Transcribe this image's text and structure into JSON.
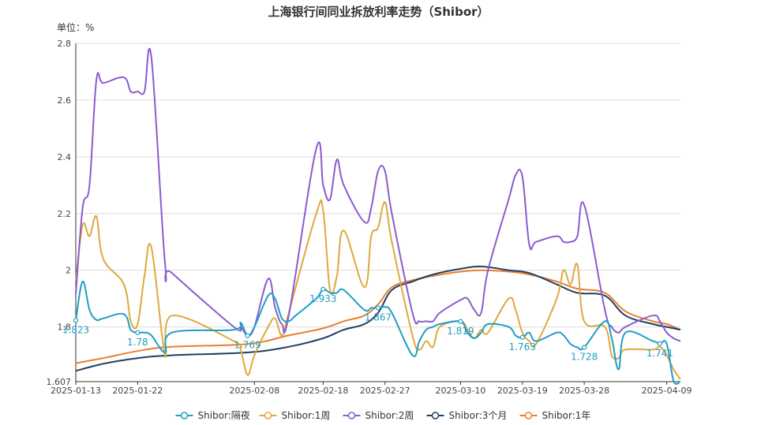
{
  "title": "上海银行间同业拆放利率走势（Shibor）",
  "unit": "单位：%",
  "chart_data": {
    "type": "line",
    "title": "上海银行间同业拆放利率走势（Shibor）",
    "ylabel": "单位：%",
    "xlabel": "",
    "ylim": [
      1.607,
      2.8
    ],
    "y_ticks": [
      "1.607",
      "1.8",
      "2",
      "2.2",
      "2.4",
      "2.6",
      "2.8"
    ],
    "x_range": [
      "2025-01-13",
      "2025-04-11"
    ],
    "x_ticks": [
      "2025-01-13",
      "2025-01-22",
      "2025-02-08",
      "2025-02-18",
      "2025-02-27",
      "2025-03-10",
      "2025-03-19",
      "2025-03-28",
      "2025-04-09"
    ],
    "grid": "horizontal",
    "legend": "bottom-center",
    "series": [
      {
        "name": "Shibor:隔夜",
        "color": "#1f9ec4",
        "values": [
          [
            "2025-01-13",
            1.823
          ],
          [
            "2025-01-14",
            1.96
          ],
          [
            "2025-01-15",
            1.86
          ],
          [
            "2025-01-16",
            1.825
          ],
          [
            "2025-01-17",
            1.83
          ],
          [
            "2025-01-20",
            1.845
          ],
          [
            "2025-01-21",
            1.79
          ],
          [
            "2025-01-22",
            1.78
          ],
          [
            "2025-01-23",
            1.78
          ],
          [
            "2025-01-24",
            1.77
          ],
          [
            "2025-01-26",
            1.71
          ],
          [
            "2025-01-27",
            1.78
          ],
          [
            "2025-02-05",
            1.79
          ],
          [
            "2025-02-06",
            1.815
          ],
          [
            "2025-02-07",
            1.769
          ],
          [
            "2025-02-08",
            1.8
          ],
          [
            "2025-02-10",
            1.91
          ],
          [
            "2025-02-11",
            1.9
          ],
          [
            "2025-02-12",
            1.83
          ],
          [
            "2025-02-13",
            1.82
          ],
          [
            "2025-02-14",
            1.84
          ],
          [
            "2025-02-17",
            1.9
          ],
          [
            "2025-02-18",
            1.933
          ],
          [
            "2025-02-19",
            1.92
          ],
          [
            "2025-02-20",
            1.92
          ],
          [
            "2025-02-21",
            1.93
          ],
          [
            "2025-02-24",
            1.86
          ],
          [
            "2025-02-25",
            1.867
          ],
          [
            "2025-02-26",
            1.867
          ],
          [
            "2025-02-27",
            1.87
          ],
          [
            "2025-02-28",
            1.85
          ],
          [
            "2025-03-03",
            1.7
          ],
          [
            "2025-03-04",
            1.75
          ],
          [
            "2025-03-05",
            1.79
          ],
          [
            "2025-03-06",
            1.8
          ],
          [
            "2025-03-07",
            1.81
          ],
          [
            "2025-03-10",
            1.819
          ],
          [
            "2025-03-11",
            1.78
          ],
          [
            "2025-03-12",
            1.76
          ],
          [
            "2025-03-13",
            1.78
          ],
          [
            "2025-03-14",
            1.81
          ],
          [
            "2025-03-17",
            1.8
          ],
          [
            "2025-03-18",
            1.77
          ],
          [
            "2025-03-19",
            1.763
          ],
          [
            "2025-03-20",
            1.78
          ],
          [
            "2025-03-21",
            1.75
          ],
          [
            "2025-03-24",
            1.78
          ],
          [
            "2025-03-25",
            1.77
          ],
          [
            "2025-03-26",
            1.74
          ],
          [
            "2025-03-27",
            1.728
          ],
          [
            "2025-03-28",
            1.728
          ],
          [
            "2025-03-31",
            1.82
          ],
          [
            "2025-04-01",
            1.76
          ],
          [
            "2025-04-02",
            1.65
          ],
          [
            "2025-04-03",
            1.78
          ],
          [
            "2025-04-07",
            1.75
          ],
          [
            "2025-04-08",
            1.741
          ],
          [
            "2025-04-09",
            1.741
          ],
          [
            "2025-04-10",
            1.61
          ],
          [
            "2025-04-11",
            1.607
          ]
        ]
      },
      {
        "name": "Shibor:1周",
        "color": "#e0a83e",
        "values": [
          [
            "2025-01-13",
            1.96
          ],
          [
            "2025-01-14",
            2.16
          ],
          [
            "2025-01-15",
            2.12
          ],
          [
            "2025-01-16",
            2.19
          ],
          [
            "2025-01-17",
            2.04
          ],
          [
            "2025-01-20",
            1.95
          ],
          [
            "2025-01-21",
            1.82
          ],
          [
            "2025-01-22",
            1.81
          ],
          [
            "2025-01-23",
            1.98
          ],
          [
            "2025-01-24",
            2.08
          ],
          [
            "2025-01-26",
            1.7
          ],
          [
            "2025-01-27",
            1.84
          ],
          [
            "2025-02-05",
            1.75
          ],
          [
            "2025-02-06",
            1.72
          ],
          [
            "2025-02-07",
            1.63
          ],
          [
            "2025-02-08",
            1.7
          ],
          [
            "2025-02-10",
            1.8
          ],
          [
            "2025-02-11",
            1.83
          ],
          [
            "2025-02-12",
            1.77
          ],
          [
            "2025-02-13",
            1.85
          ],
          [
            "2025-02-17",
            2.2
          ],
          [
            "2025-02-18",
            2.21
          ],
          [
            "2025-02-19",
            1.93
          ],
          [
            "2025-02-20",
            1.98
          ],
          [
            "2025-02-21",
            2.14
          ],
          [
            "2025-02-24",
            1.94
          ],
          [
            "2025-02-25",
            2.12
          ],
          [
            "2025-02-26",
            2.15
          ],
          [
            "2025-02-27",
            2.24
          ],
          [
            "2025-02-28",
            2.1
          ],
          [
            "2025-03-03",
            1.77
          ],
          [
            "2025-03-04",
            1.72
          ],
          [
            "2025-03-05",
            1.75
          ],
          [
            "2025-03-06",
            1.73
          ],
          [
            "2025-03-07",
            1.8
          ],
          [
            "2025-03-10",
            1.82
          ],
          [
            "2025-03-11",
            1.79
          ],
          [
            "2025-03-12",
            1.76
          ],
          [
            "2025-03-13",
            1.79
          ],
          [
            "2025-03-14",
            1.78
          ],
          [
            "2025-03-17",
            1.9
          ],
          [
            "2025-03-18",
            1.86
          ],
          [
            "2025-03-19",
            1.78
          ],
          [
            "2025-03-20",
            1.75
          ],
          [
            "2025-03-21",
            1.74
          ],
          [
            "2025-03-24",
            1.9
          ],
          [
            "2025-03-25",
            2.0
          ],
          [
            "2025-03-26",
            1.95
          ],
          [
            "2025-03-27",
            2.02
          ],
          [
            "2025-03-28",
            1.82
          ],
          [
            "2025-03-31",
            1.8
          ],
          [
            "2025-04-01",
            1.7
          ],
          [
            "2025-04-02",
            1.69
          ],
          [
            "2025-04-03",
            1.72
          ],
          [
            "2025-04-07",
            1.72
          ],
          [
            "2025-04-08",
            1.73
          ],
          [
            "2025-04-09",
            1.7
          ],
          [
            "2025-04-10",
            1.65
          ],
          [
            "2025-04-11",
            1.615
          ]
        ]
      },
      {
        "name": "Shibor:2周",
        "color": "#8a5ccf",
        "values": [
          [
            "2025-01-13",
            1.915
          ],
          [
            "2025-01-14",
            2.22
          ],
          [
            "2025-01-15",
            2.3
          ],
          [
            "2025-01-16",
            2.67
          ],
          [
            "2025-01-17",
            2.66
          ],
          [
            "2025-01-20",
            2.68
          ],
          [
            "2025-01-21",
            2.63
          ],
          [
            "2025-01-22",
            2.63
          ],
          [
            "2025-01-23",
            2.63
          ],
          [
            "2025-01-24",
            2.75
          ],
          [
            "2025-01-26",
            2.02
          ],
          [
            "2025-01-27",
            1.99
          ],
          [
            "2025-02-05",
            1.8
          ],
          [
            "2025-02-06",
            1.8
          ],
          [
            "2025-02-07",
            1.77
          ],
          [
            "2025-02-08",
            1.8
          ],
          [
            "2025-02-10",
            1.97
          ],
          [
            "2025-02-11",
            1.87
          ],
          [
            "2025-02-12",
            1.81
          ],
          [
            "2025-02-13",
            1.84
          ],
          [
            "2025-02-17",
            2.43
          ],
          [
            "2025-02-18",
            2.3
          ],
          [
            "2025-02-19",
            2.25
          ],
          [
            "2025-02-20",
            2.39
          ],
          [
            "2025-02-21",
            2.3
          ],
          [
            "2025-02-24",
            2.17
          ],
          [
            "2025-02-25",
            2.22
          ],
          [
            "2025-02-26",
            2.35
          ],
          [
            "2025-02-27",
            2.35
          ],
          [
            "2025-02-28",
            2.2
          ],
          [
            "2025-03-03",
            1.85
          ],
          [
            "2025-03-04",
            1.82
          ],
          [
            "2025-03-05",
            1.82
          ],
          [
            "2025-03-06",
            1.82
          ],
          [
            "2025-03-07",
            1.85
          ],
          [
            "2025-03-10",
            1.895
          ],
          [
            "2025-03-11",
            1.9
          ],
          [
            "2025-03-12",
            1.86
          ],
          [
            "2025-03-13",
            1.85
          ],
          [
            "2025-03-14",
            2.0
          ],
          [
            "2025-03-17",
            2.25
          ],
          [
            "2025-03-18",
            2.335
          ],
          [
            "2025-03-19",
            2.33
          ],
          [
            "2025-03-20",
            2.09
          ],
          [
            "2025-03-21",
            2.1
          ],
          [
            "2025-03-24",
            2.12
          ],
          [
            "2025-03-25",
            2.1
          ],
          [
            "2025-03-26",
            2.1
          ],
          [
            "2025-03-27",
            2.12
          ],
          [
            "2025-03-28",
            2.23
          ],
          [
            "2025-03-31",
            1.86
          ],
          [
            "2025-04-01",
            1.8
          ],
          [
            "2025-04-02",
            1.78
          ],
          [
            "2025-04-03",
            1.8
          ],
          [
            "2025-04-07",
            1.84
          ],
          [
            "2025-04-08",
            1.82
          ],
          [
            "2025-04-09",
            1.78
          ],
          [
            "2025-04-10",
            1.76
          ],
          [
            "2025-04-11",
            1.75
          ]
        ]
      },
      {
        "name": "Shibor:3个月",
        "color": "#1e3f66",
        "values": [
          [
            "2025-01-13",
            1.645
          ],
          [
            "2025-01-17",
            1.67
          ],
          [
            "2025-01-22",
            1.69
          ],
          [
            "2025-01-27",
            1.7
          ],
          [
            "2025-02-07",
            1.71
          ],
          [
            "2025-02-13",
            1.73
          ],
          [
            "2025-02-18",
            1.76
          ],
          [
            "2025-02-21",
            1.79
          ],
          [
            "2025-02-24",
            1.81
          ],
          [
            "2025-02-26",
            1.85
          ],
          [
            "2025-02-28",
            1.93
          ],
          [
            "2025-03-03",
            1.96
          ],
          [
            "2025-03-06",
            1.985
          ],
          [
            "2025-03-10",
            2.005
          ],
          [
            "2025-03-13",
            2.013
          ],
          [
            "2025-03-17",
            2.0
          ],
          [
            "2025-03-20",
            1.99
          ],
          [
            "2025-03-24",
            1.95
          ],
          [
            "2025-03-27",
            1.92
          ],
          [
            "2025-03-31",
            1.91
          ],
          [
            "2025-04-03",
            1.84
          ],
          [
            "2025-04-07",
            1.81
          ],
          [
            "2025-04-09",
            1.8
          ],
          [
            "2025-04-11",
            1.79
          ]
        ]
      },
      {
        "name": "Shibor:1年",
        "color": "#ea7f2e",
        "values": [
          [
            "2025-01-13",
            1.672
          ],
          [
            "2025-01-17",
            1.69
          ],
          [
            "2025-01-22",
            1.715
          ],
          [
            "2025-01-27",
            1.73
          ],
          [
            "2025-02-07",
            1.74
          ],
          [
            "2025-02-13",
            1.77
          ],
          [
            "2025-02-18",
            1.795
          ],
          [
            "2025-02-21",
            1.82
          ],
          [
            "2025-02-24",
            1.84
          ],
          [
            "2025-02-26",
            1.88
          ],
          [
            "2025-02-28",
            1.94
          ],
          [
            "2025-03-03",
            1.965
          ],
          [
            "2025-03-06",
            1.98
          ],
          [
            "2025-03-10",
            1.995
          ],
          [
            "2025-03-13",
            2.0
          ],
          [
            "2025-03-17",
            1.995
          ],
          [
            "2025-03-20",
            1.985
          ],
          [
            "2025-03-24",
            1.96
          ],
          [
            "2025-03-27",
            1.935
          ],
          [
            "2025-03-31",
            1.92
          ],
          [
            "2025-04-03",
            1.855
          ],
          [
            "2025-04-07",
            1.82
          ],
          [
            "2025-04-09",
            1.81
          ],
          [
            "2025-04-11",
            1.79
          ]
        ]
      }
    ],
    "data_labels": [
      {
        "series": 0,
        "x": "2025-01-13",
        "text": "1.823"
      },
      {
        "series": 0,
        "x": "2025-01-22",
        "text": "1.78"
      },
      {
        "series": 0,
        "x": "2025-02-07",
        "text": "1.769"
      },
      {
        "series": 0,
        "x": "2025-02-18",
        "text": "1.933"
      },
      {
        "series": 0,
        "x": "2025-02-26",
        "text": "1.867"
      },
      {
        "series": 0,
        "x": "2025-03-10",
        "text": "1.819"
      },
      {
        "series": 0,
        "x": "2025-03-19",
        "text": "1.763"
      },
      {
        "series": 0,
        "x": "2025-03-28",
        "text": "1.728"
      },
      {
        "series": 0,
        "x": "2025-04-08",
        "text": "1.741"
      }
    ]
  }
}
